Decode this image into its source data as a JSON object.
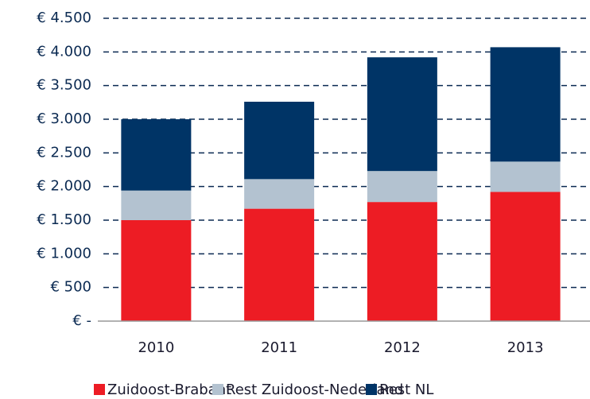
{
  "chart_data": {
    "type": "stacked_bar",
    "categories": [
      "2010",
      "2011",
      "2012",
      "2013"
    ],
    "series": [
      {
        "name": "Zuidoost-Brabant",
        "color": "#ed1c24",
        "values": [
          1500,
          1670,
          1770,
          1920
        ]
      },
      {
        "name": "Rest Zuidoost-Nederland",
        "color": "#b3c2d0",
        "values": [
          440,
          440,
          460,
          450
        ]
      },
      {
        "name": "Rest NL",
        "color": "#003466",
        "values": [
          1060,
          1150,
          1690,
          1700
        ]
      }
    ],
    "ylim": [
      0,
      4500
    ],
    "yticks": [
      {
        "value": 0,
        "label": "€ -"
      },
      {
        "value": 500,
        "label": "€ 500"
      },
      {
        "value": 1000,
        "label": "€ 1.000"
      },
      {
        "value": 1500,
        "label": "€ 1.500"
      },
      {
        "value": 2000,
        "label": "€ 2.000"
      },
      {
        "value": 2500,
        "label": "€ 2.500"
      },
      {
        "value": 3000,
        "label": "€ 3.000"
      },
      {
        "value": 3500,
        "label": "€ 3.500"
      },
      {
        "value": 4000,
        "label": "€ 4.000"
      },
      {
        "value": 4500,
        "label": "€ 4.500"
      }
    ],
    "grid": true,
    "legend": "bottom"
  }
}
